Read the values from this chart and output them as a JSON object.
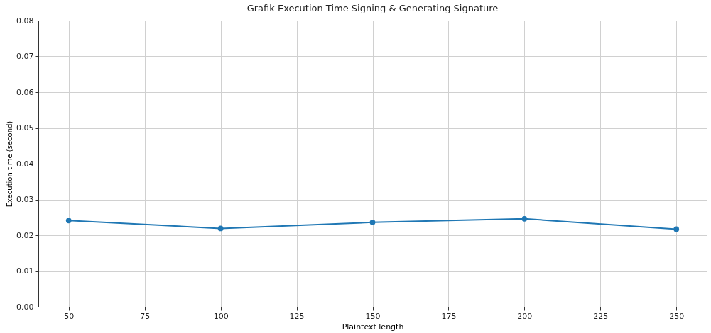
{
  "chart_data": {
    "type": "line",
    "title": "Grafik Execution Time Signing & Generating Signature",
    "xlabel": "Plaintext length",
    "ylabel": "Execution time (second)",
    "x": [
      50,
      100,
      150,
      200,
      250
    ],
    "series": [
      {
        "color": "#1f77b4",
        "values": [
          0.0241,
          0.0219,
          0.0236,
          0.0246,
          0.0217
        ]
      }
    ],
    "xlim": [
      40,
      260
    ],
    "xticks": [
      50,
      75,
      100,
      125,
      150,
      175,
      200,
      225,
      250
    ],
    "ylim": [
      0,
      0.08
    ],
    "yticks": [
      {
        "value": 0,
        "label": "0.00"
      },
      {
        "value": 0.01,
        "label": "0.01"
      },
      {
        "value": 0.02,
        "label": "0.02"
      },
      {
        "value": 0.03,
        "label": "0.03"
      },
      {
        "value": 0.04,
        "label": "0.04"
      },
      {
        "value": 0.05,
        "label": "0.05"
      },
      {
        "value": 0.06,
        "label": "0.06"
      },
      {
        "value": 0.07,
        "label": "0.07"
      },
      {
        "value": 0.08,
        "label": "0.08"
      }
    ],
    "grid": true,
    "marker": "circle",
    "line_style": "solid"
  }
}
